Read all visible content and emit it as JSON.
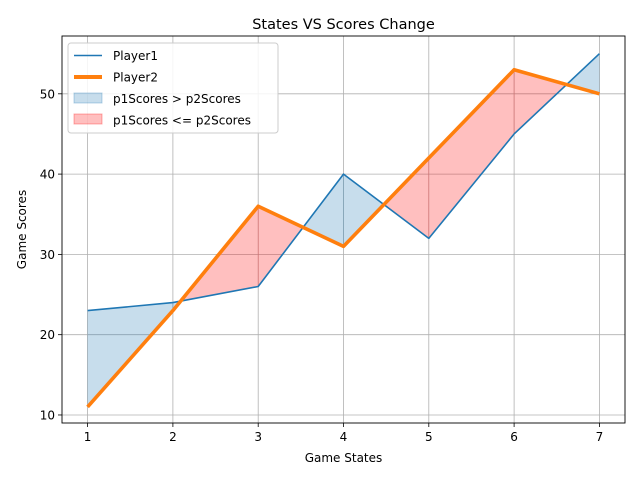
{
  "chart_data": {
    "type": "line",
    "title": "States VS Scores Change",
    "xlabel": "Game States",
    "ylabel": "Game Scores",
    "x": [
      1,
      2,
      3,
      4,
      5,
      6,
      7
    ],
    "xlim": [
      0.7,
      7.3
    ],
    "ylim": [
      9.0,
      57.2
    ],
    "xticks": [
      1,
      2,
      3,
      4,
      5,
      6,
      7
    ],
    "yticks": [
      10,
      20,
      30,
      40,
      50
    ],
    "grid": true,
    "legend_position": "top-left",
    "series": [
      {
        "name": "Player1",
        "values": [
          23,
          24,
          26,
          40,
          32,
          45,
          55
        ],
        "color": "#1f77b4",
        "style": "thin"
      },
      {
        "name": "Player2",
        "values": [
          11,
          23,
          36,
          31,
          42,
          53,
          50
        ],
        "color": "#ff7f0e",
        "style": "thick"
      }
    ],
    "fills": [
      {
        "name": "p1Scores > p2Scores",
        "color": "#1f77b4",
        "opacity": 0.25,
        "condition": "p1_gt_p2"
      },
      {
        "name": "p1Scores <= p2Scores",
        "color": "#ff0000",
        "opacity": 0.25,
        "condition": "p1_le_p2"
      }
    ]
  }
}
